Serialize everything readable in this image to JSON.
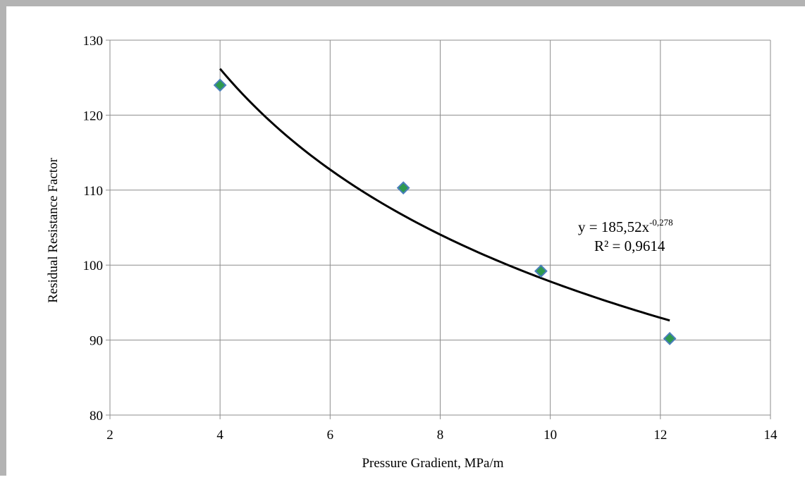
{
  "chart_data": {
    "type": "scatter",
    "title": "",
    "xlabel": "Pressure Gradient, MPa/m",
    "ylabel": "Residual Resistance Factor",
    "xlim": [
      2,
      14
    ],
    "ylim": [
      80,
      130
    ],
    "x_ticks": [
      "2",
      "4",
      "6",
      "8",
      "10",
      "12",
      "14"
    ],
    "y_ticks": [
      "80",
      "90",
      "100",
      "110",
      "120",
      "130"
    ],
    "grid": true,
    "legend": "none",
    "series": [
      {
        "x": [
          4.0,
          7.33,
          9.83,
          12.17
        ],
        "y": [
          124.0,
          110.3,
          99.2,
          90.2
        ],
        "marker": "diamond",
        "color": "#2e9a4f",
        "edge_color": "#4a7ebb"
      }
    ],
    "trendline": {
      "type": "power",
      "a": 185.52,
      "b": -0.278,
      "x_range": [
        4.0,
        12.17
      ],
      "color": "#000000"
    },
    "annotation": {
      "equation_main": "y = 185,52x",
      "equation_exponent": "-0,278",
      "r_squared": "R² = 0,9614"
    }
  }
}
